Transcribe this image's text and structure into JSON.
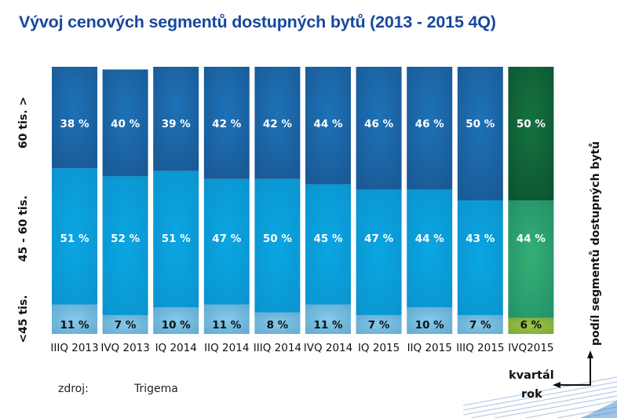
{
  "chart_data": {
    "type": "bar",
    "stacked": true,
    "title": "Vývoj cenových segmentů dostupných bytů (2013 - 2015 4Q)",
    "xlabel": "kvartál rok",
    "ylabel": "podíl segmentů dostupných bytů",
    "categories": [
      "IIIQ 2013",
      "IVQ 2013",
      "IQ 2014",
      "IIQ 2014",
      "IIIQ 2014",
      "IVQ 2014",
      "IQ 2015",
      "IIQ 2015",
      "IIIQ 2015",
      "IVQ2015"
    ],
    "series": [
      {
        "name": "<45 tis.",
        "values": [
          11,
          7,
          10,
          11,
          8,
          11,
          7,
          10,
          7,
          6
        ]
      },
      {
        "name": "45 - 60 tis.",
        "values": [
          51,
          52,
          51,
          47,
          50,
          45,
          47,
          44,
          43,
          44
        ]
      },
      {
        "name": "60 tis. >",
        "values": [
          38,
          40,
          39,
          42,
          42,
          44,
          46,
          46,
          50,
          50
        ]
      }
    ],
    "value_suffix": " %",
    "highlighted_category": "IVQ2015",
    "colors": {
      "low": "#6db3d6",
      "mid": "#0d9ad6",
      "high": "#1b5f9e",
      "low_highlight": "#86b43a",
      "mid_highlight": "#2a9a6e",
      "high_highlight": "#0f5a36"
    },
    "grid": false,
    "legend": "left (rotated segment labels)"
  },
  "segment_labels": [
    "<45 tis.",
    "45 - 60 tis.",
    "60 tis. >"
  ],
  "axis_hint": {
    "x": "kvartál",
    "x2": "rok",
    "y": "podíl segmentů dostupných bytů"
  },
  "source": {
    "label": "zdroj:",
    "value": "Trigema"
  }
}
